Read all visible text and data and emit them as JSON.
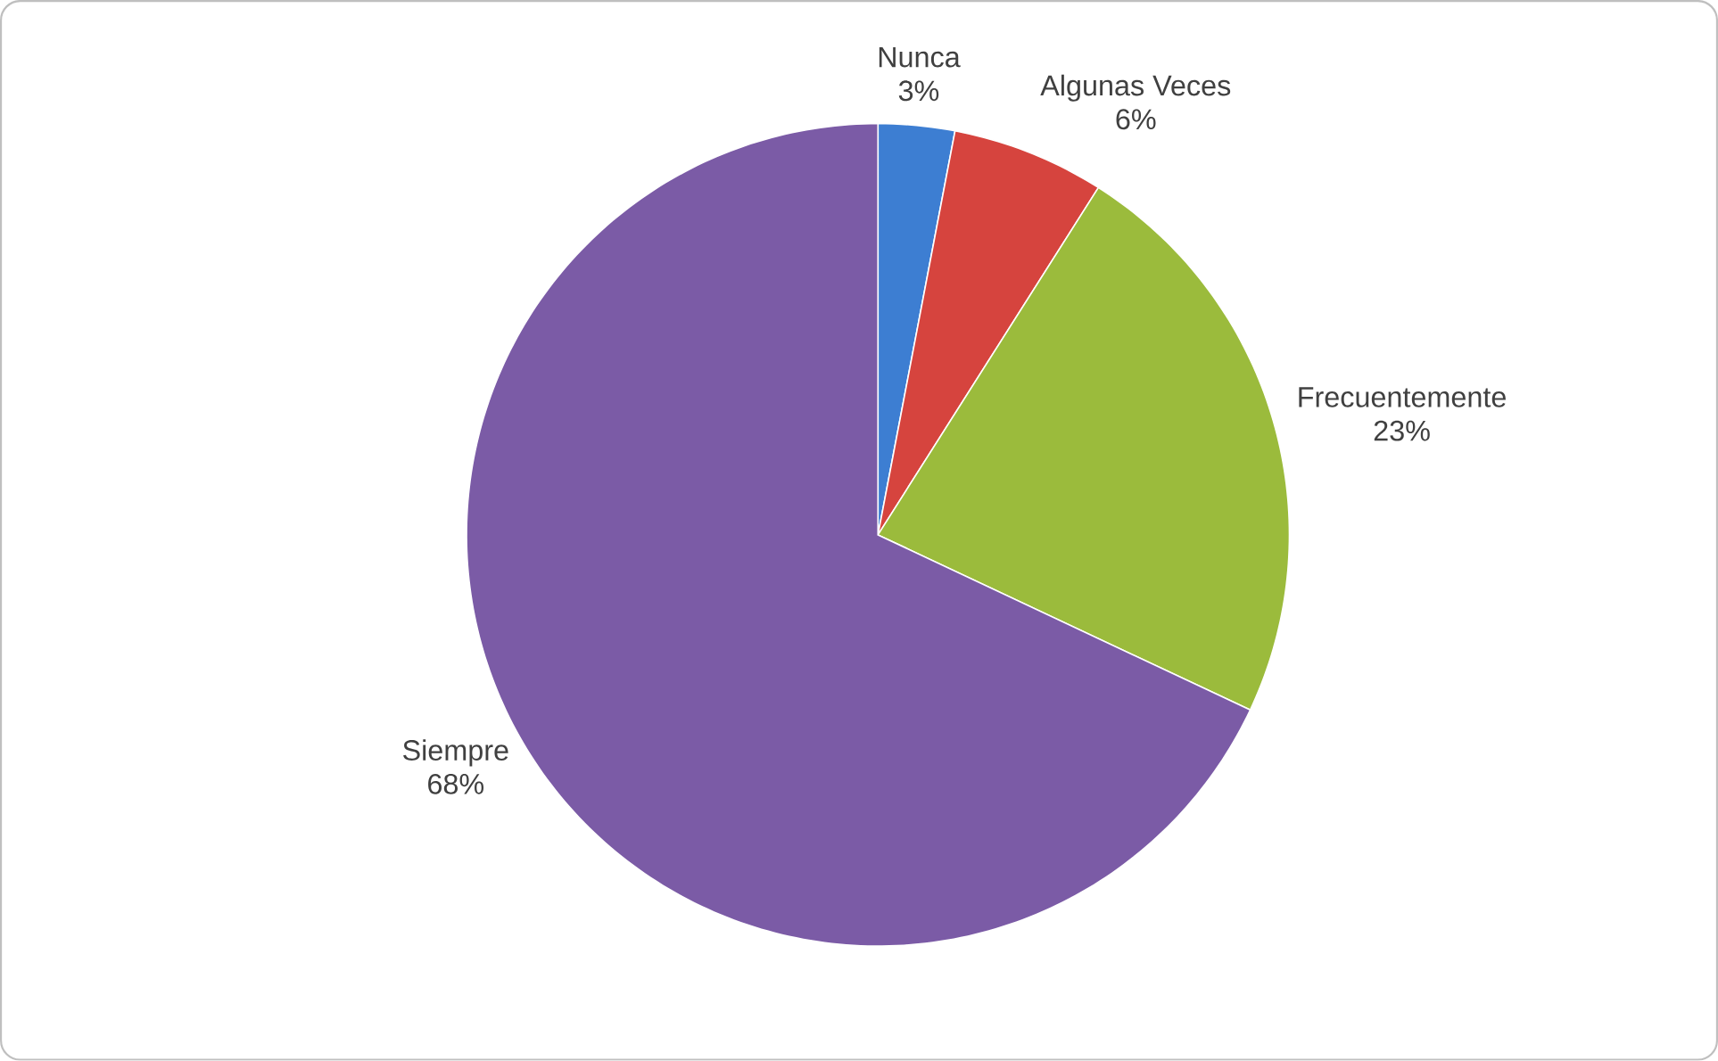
{
  "chart_data": {
    "type": "pie",
    "categories": [
      "Nunca",
      "Algunas Veces",
      "Frecuentemente",
      "Siempre"
    ],
    "values": [
      3,
      6,
      23,
      68
    ],
    "value_labels": [
      "3%",
      "6%",
      "23%",
      "68%"
    ],
    "colors": [
      "#3d7ed2",
      "#d6443e",
      "#9bbb3c",
      "#7b5ba6"
    ]
  }
}
